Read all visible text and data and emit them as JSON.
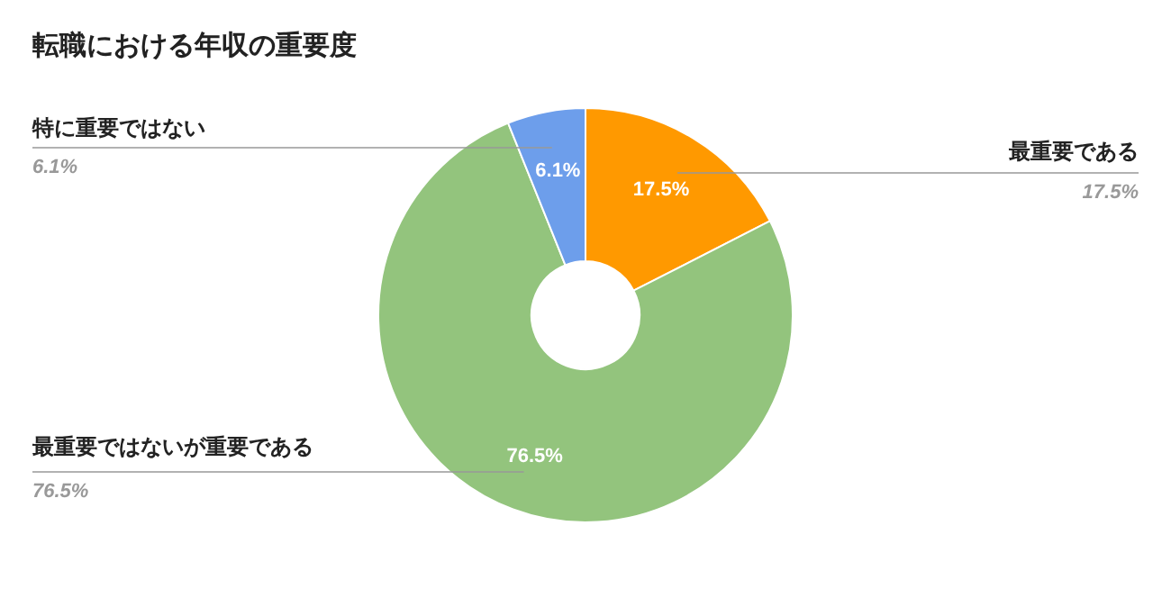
{
  "chart_data": {
    "type": "donut",
    "title": "転職における年収の重要度",
    "categories": [
      "最重要である",
      "最重要ではないが重要である",
      "特に重要ではない"
    ],
    "values": [
      17.5,
      76.5,
      6.1
    ],
    "colors": [
      "#ff9900",
      "#93c47d",
      "#6d9eeb"
    ],
    "data_labels": true,
    "value_labels": [
      "17.5%",
      "76.5%",
      "6.1%"
    ],
    "legend": false
  }
}
